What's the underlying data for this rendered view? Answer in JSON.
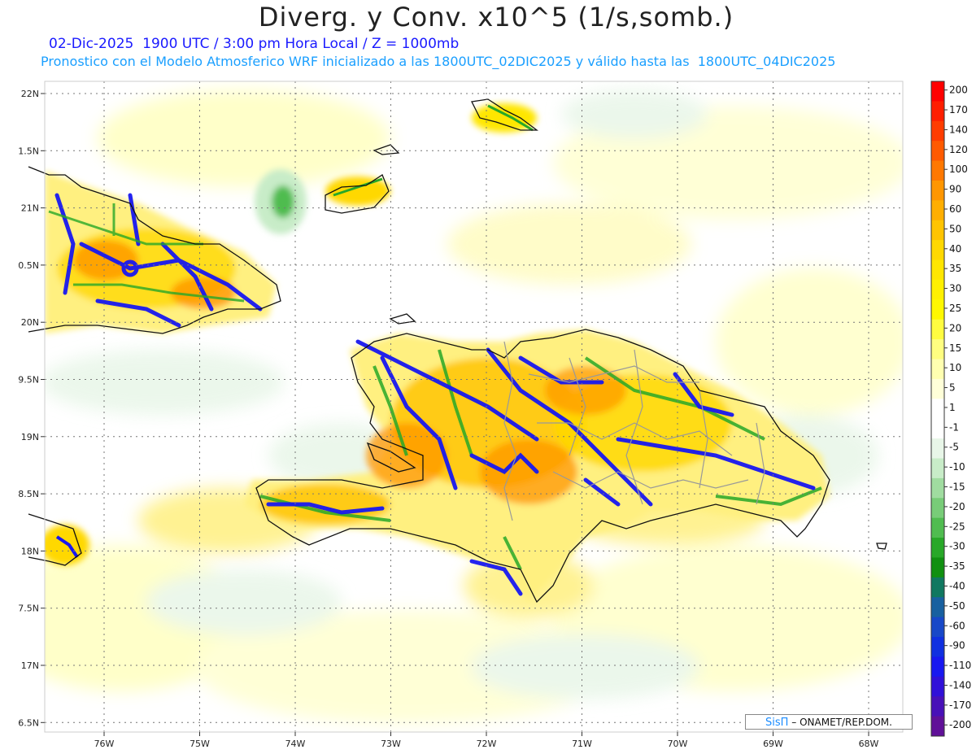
{
  "header": {
    "title": "Diverg. y Conv. x10^5 (1/s,somb.)",
    "line1": "02-Dic-2025  1900 UTC / 3:00 pm Hora Local / Z = 1000mb",
    "line2": "Pronostico con el Modelo Atmosferico WRF inicializado a las 1800UTC_02DIC2025 y válido hasta las  1800UTC_04DIC2025"
  },
  "map": {
    "lat_labels": [
      "22N",
      "1.5N",
      "21N",
      "0.5N",
      "20N",
      "9.5N",
      "19N",
      "8.5N",
      "18N",
      "7.5N",
      "17N",
      "6.5N"
    ],
    "lon_labels": [
      "76W",
      "75W",
      "74W",
      "73W",
      "72W",
      "71W",
      "70W",
      "69W",
      "68W"
    ],
    "regions": [
      "Cuba (east)",
      "Great Inagua / Bahamas",
      "Turks and Caicos",
      "Hispaniola (Haiti / Dominican Republic)",
      "Jamaica (east tip)"
    ]
  },
  "colorbar": {
    "labels": [
      "200",
      "170",
      "140",
      "120",
      "100",
      "90",
      "60",
      "50",
      "40",
      "35",
      "30",
      "25",
      "20",
      "15",
      "10",
      "5",
      "1",
      "-1",
      "-5",
      "-10",
      "-15",
      "-20",
      "-25",
      "-30",
      "-35",
      "-40",
      "-50",
      "-60",
      "-90",
      "-110",
      "-140",
      "-170",
      "-200"
    ],
    "colors": [
      "#ff0000",
      "#ff1e00",
      "#ff3c00",
      "#ff5a00",
      "#ff7800",
      "#ff9600",
      "#ffae00",
      "#ffc400",
      "#ffd800",
      "#ffe600",
      "#fff000",
      "#fff800",
      "#fffc40",
      "#fffe80",
      "#ffffb0",
      "#ffffd8",
      "#ffffff",
      "#ffffff",
      "#e8f6e8",
      "#c8ecc8",
      "#a0dca0",
      "#78cc78",
      "#50bc50",
      "#28a828",
      "#109010",
      "#107860",
      "#1860a0",
      "#1848c8",
      "#1030e0",
      "#1818f0",
      "#3010d8",
      "#4810b8",
      "#601098"
    ]
  },
  "credit": {
    "brand": "SisΠ",
    "text": "– ONAMET/REP.DOM."
  }
}
